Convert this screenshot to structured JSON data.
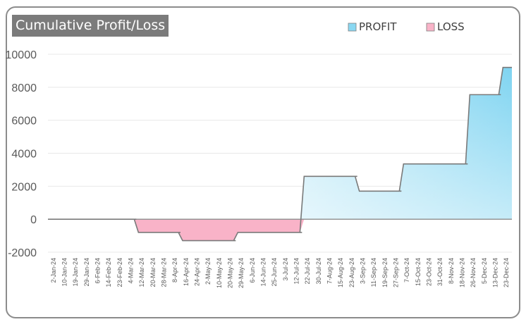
{
  "chart_data": {
    "type": "area",
    "title": "Cumulative Profit/Loss",
    "xlabel": "",
    "ylabel": "",
    "ylim": [
      -2000,
      10000
    ],
    "yticks": [
      10000,
      8000,
      6000,
      4000,
      2000,
      0,
      -2000
    ],
    "legend_position": "top-right",
    "grid": true,
    "x": [
      "2-Jan-24",
      "10-Jan-24",
      "19-Jan-24",
      "29-Jan-24",
      "6-Feb-24",
      "14-Feb-24",
      "23-Feb-24",
      "4-Mar-24",
      "12-Mar-24",
      "20-Mar-24",
      "28-Mar-24",
      "8-Apr-24",
      "16-Apr-24",
      "24-Apr-24",
      "2-May-24",
      "10-May-24",
      "20-May-24",
      "29-May-24",
      "6-Jun-24",
      "14-Jun-24",
      "25-Jun-24",
      "3-Jul-24",
      "12-Jul-24",
      "22-Jul-24",
      "30-Jul-24",
      "7-Aug-24",
      "15-Aug-24",
      "23-Aug-24",
      "3-Sep-24",
      "11-Sep-24",
      "19-Sep-24",
      "27-Sep-24",
      "7-Oct-24",
      "15-Oct-24",
      "23-Oct-24",
      "31-Oct-24",
      "8-Nov-24",
      "18-Nov-24",
      "26-Nov-24",
      "5-Dec-24",
      "13-Dec-24",
      "23-Dec-24"
    ],
    "values": [
      0,
      0,
      0,
      0,
      0,
      0,
      0,
      0,
      -800,
      -800,
      -800,
      -800,
      -1300,
      -1300,
      -1300,
      -1300,
      -1300,
      -800,
      -800,
      -800,
      -800,
      -800,
      -800,
      2600,
      2600,
      2600,
      2600,
      2600,
      1700,
      1700,
      1700,
      1700,
      3350,
      3350,
      3350,
      3350,
      3350,
      3350,
      7550,
      7550,
      7550,
      9200
    ],
    "series": [
      {
        "name": "PROFIT",
        "color": "#8ad8f2"
      },
      {
        "name": "LOSS",
        "color": "#f9b3c8"
      }
    ]
  }
}
